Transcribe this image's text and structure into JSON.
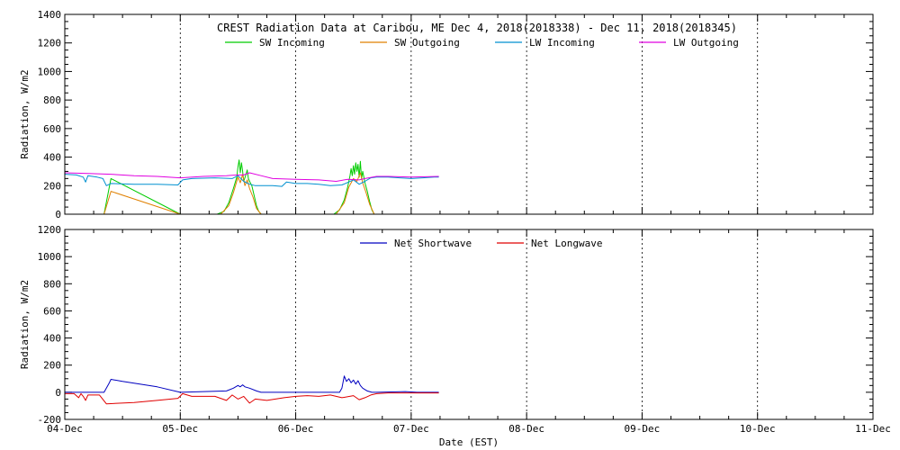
{
  "chart_data": [
    {
      "type": "line",
      "title": "CREST Radiation Data at Caribou, ME   Dec  4, 2018(2018338) - Dec 11, 2018(2018345)",
      "xlabel": "",
      "ylabel": "Radiation, W/m2",
      "ylim": [
        0,
        1400
      ],
      "yticks": [
        0,
        200,
        400,
        600,
        800,
        1000,
        1200,
        1400
      ],
      "xlim": [
        0,
        7
      ],
      "xticks": [
        0,
        1,
        2,
        3,
        4,
        5,
        6,
        7
      ],
      "grid": true,
      "legend": "top",
      "series": [
        {
          "name": "SW Incoming",
          "color": "#00cc00",
          "points": [
            [
              0.34,
              0
            ],
            [
              0.4,
              250
            ],
            [
              1.0,
              0
            ],
            [
              1.32,
              0
            ],
            [
              1.38,
              20
            ],
            [
              1.42,
              80
            ],
            [
              1.46,
              180
            ],
            [
              1.49,
              260
            ],
            [
              1.5,
              330
            ],
            [
              1.51,
              380
            ],
            [
              1.52,
              290
            ],
            [
              1.53,
              360
            ],
            [
              1.54,
              300
            ],
            [
              1.55,
              230
            ],
            [
              1.57,
              280
            ],
            [
              1.58,
              310
            ],
            [
              1.59,
              250
            ],
            [
              1.6,
              230
            ],
            [
              1.62,
              200
            ],
            [
              1.64,
              130
            ],
            [
              1.66,
              60
            ],
            [
              1.68,
              20
            ],
            [
              1.7,
              0
            ],
            [
              2.33,
              0
            ],
            [
              2.38,
              30
            ],
            [
              2.42,
              100
            ],
            [
              2.45,
              190
            ],
            [
              2.47,
              270
            ],
            [
              2.48,
              320
            ],
            [
              2.49,
              270
            ],
            [
              2.5,
              340
            ],
            [
              2.51,
              280
            ],
            [
              2.52,
              360
            ],
            [
              2.53,
              300
            ],
            [
              2.54,
              350
            ],
            [
              2.55,
              260
            ],
            [
              2.56,
              370
            ],
            [
              2.57,
              250
            ],
            [
              2.58,
              300
            ],
            [
              2.6,
              220
            ],
            [
              2.62,
              160
            ],
            [
              2.64,
              90
            ],
            [
              2.66,
              30
            ],
            [
              2.68,
              0
            ]
          ]
        },
        {
          "name": "SW Outgoing",
          "color": "#e08000",
          "points": [
            [
              0.34,
              0
            ],
            [
              0.4,
              160
            ],
            [
              1.0,
              0
            ],
            [
              1.35,
              0
            ],
            [
              1.42,
              60
            ],
            [
              1.46,
              150
            ],
            [
              1.5,
              260
            ],
            [
              1.52,
              220
            ],
            [
              1.54,
              280
            ],
            [
              1.56,
              200
            ],
            [
              1.58,
              240
            ],
            [
              1.6,
              180
            ],
            [
              1.63,
              120
            ],
            [
              1.66,
              40
            ],
            [
              1.7,
              0
            ],
            [
              2.35,
              0
            ],
            [
              2.42,
              80
            ],
            [
              2.46,
              190
            ],
            [
              2.5,
              250
            ],
            [
              2.53,
              230
            ],
            [
              2.56,
              290
            ],
            [
              2.58,
              220
            ],
            [
              2.61,
              150
            ],
            [
              2.64,
              70
            ],
            [
              2.68,
              0
            ]
          ]
        },
        {
          "name": "LW Incoming",
          "color": "#0090d0",
          "points": [
            [
              0.0,
              280
            ],
            [
              0.1,
              275
            ],
            [
              0.16,
              260
            ],
            [
              0.18,
              225
            ],
            [
              0.2,
              270
            ],
            [
              0.28,
              260
            ],
            [
              0.33,
              250
            ],
            [
              0.36,
              200
            ],
            [
              0.4,
              215
            ],
            [
              0.6,
              210
            ],
            [
              0.8,
              210
            ],
            [
              0.98,
              205
            ],
            [
              1.02,
              240
            ],
            [
              1.1,
              250
            ],
            [
              1.3,
              255
            ],
            [
              1.45,
              250
            ],
            [
              1.5,
              270
            ],
            [
              1.55,
              230
            ],
            [
              1.6,
              210
            ],
            [
              1.65,
              200
            ],
            [
              1.8,
              200
            ],
            [
              1.88,
              195
            ],
            [
              1.92,
              225
            ],
            [
              2.0,
              215
            ],
            [
              2.1,
              215
            ],
            [
              2.2,
              210
            ],
            [
              2.3,
              200
            ],
            [
              2.4,
              205
            ],
            [
              2.5,
              240
            ],
            [
              2.55,
              210
            ],
            [
              2.6,
              230
            ],
            [
              2.65,
              255
            ],
            [
              2.7,
              260
            ],
            [
              2.8,
              260
            ],
            [
              2.9,
              255
            ],
            [
              3.0,
              250
            ],
            [
              3.1,
              255
            ],
            [
              3.2,
              260
            ],
            [
              3.24,
              260
            ]
          ]
        },
        {
          "name": "LW Outgoing",
          "color": "#e000e0",
          "points": [
            [
              0.0,
              290
            ],
            [
              0.2,
              285
            ],
            [
              0.4,
              280
            ],
            [
              0.6,
              270
            ],
            [
              0.8,
              265
            ],
            [
              1.0,
              255
            ],
            [
              1.2,
              265
            ],
            [
              1.4,
              270
            ],
            [
              1.5,
              275
            ],
            [
              1.55,
              275
            ],
            [
              1.6,
              290
            ],
            [
              1.7,
              270
            ],
            [
              1.8,
              250
            ],
            [
              2.0,
              245
            ],
            [
              2.2,
              240
            ],
            [
              2.35,
              230
            ],
            [
              2.45,
              245
            ],
            [
              2.55,
              240
            ],
            [
              2.6,
              250
            ],
            [
              2.7,
              265
            ],
            [
              2.8,
              265
            ],
            [
              3.0,
              260
            ],
            [
              3.24,
              265
            ]
          ]
        }
      ]
    },
    {
      "type": "line",
      "title": "",
      "xlabel": "Date (EST)",
      "ylabel": "Radiation, W/m2",
      "ylim": [
        -200,
        1200
      ],
      "yticks": [
        -200,
        0,
        200,
        400,
        600,
        800,
        1000,
        1200
      ],
      "xlim": [
        0,
        7
      ],
      "xticks": [
        0,
        1,
        2,
        3,
        4,
        5,
        6,
        7
      ],
      "xticklabels": [
        "04-Dec",
        "05-Dec",
        "06-Dec",
        "07-Dec",
        "08-Dec",
        "09-Dec",
        "10-Dec",
        "11-Dec"
      ],
      "grid": true,
      "legend": "top",
      "series": [
        {
          "name": "Net Shortwave",
          "color": "#0000c0",
          "points": [
            [
              0.0,
              0
            ],
            [
              0.34,
              0
            ],
            [
              0.38,
              60
            ],
            [
              0.4,
              95
            ],
            [
              0.5,
              80
            ],
            [
              0.8,
              40
            ],
            [
              1.0,
              0
            ],
            [
              1.4,
              10
            ],
            [
              1.46,
              30
            ],
            [
              1.5,
              50
            ],
            [
              1.52,
              40
            ],
            [
              1.54,
              55
            ],
            [
              1.56,
              40
            ],
            [
              1.6,
              30
            ],
            [
              1.66,
              10
            ],
            [
              1.7,
              0
            ],
            [
              2.38,
              0
            ],
            [
              2.4,
              30
            ],
            [
              2.42,
              120
            ],
            [
              2.44,
              80
            ],
            [
              2.46,
              100
            ],
            [
              2.48,
              70
            ],
            [
              2.5,
              90
            ],
            [
              2.52,
              60
            ],
            [
              2.54,
              85
            ],
            [
              2.56,
              50
            ],
            [
              2.58,
              30
            ],
            [
              2.62,
              10
            ],
            [
              2.66,
              0
            ],
            [
              2.7,
              0
            ],
            [
              2.95,
              5
            ],
            [
              3.05,
              0
            ],
            [
              3.24,
              0
            ]
          ]
        },
        {
          "name": "Net Longwave",
          "color": "#e00000",
          "points": [
            [
              0.0,
              -10
            ],
            [
              0.08,
              -10
            ],
            [
              0.12,
              -40
            ],
            [
              0.14,
              -10
            ],
            [
              0.16,
              -30
            ],
            [
              0.18,
              -60
            ],
            [
              0.2,
              -20
            ],
            [
              0.3,
              -20
            ],
            [
              0.36,
              -85
            ],
            [
              0.6,
              -75
            ],
            [
              0.8,
              -60
            ],
            [
              0.98,
              -45
            ],
            [
              1.02,
              -10
            ],
            [
              1.1,
              -30
            ],
            [
              1.3,
              -30
            ],
            [
              1.4,
              -60
            ],
            [
              1.45,
              -20
            ],
            [
              1.5,
              -50
            ],
            [
              1.55,
              -30
            ],
            [
              1.6,
              -80
            ],
            [
              1.65,
              -50
            ],
            [
              1.75,
              -60
            ],
            [
              1.9,
              -40
            ],
            [
              2.0,
              -30
            ],
            [
              2.1,
              -25
            ],
            [
              2.2,
              -30
            ],
            [
              2.3,
              -20
            ],
            [
              2.4,
              -40
            ],
            [
              2.5,
              -25
            ],
            [
              2.55,
              -55
            ],
            [
              2.6,
              -40
            ],
            [
              2.65,
              -20
            ],
            [
              2.7,
              -10
            ],
            [
              2.8,
              -5
            ],
            [
              3.0,
              -5
            ],
            [
              3.24,
              -5
            ]
          ]
        }
      ]
    }
  ]
}
